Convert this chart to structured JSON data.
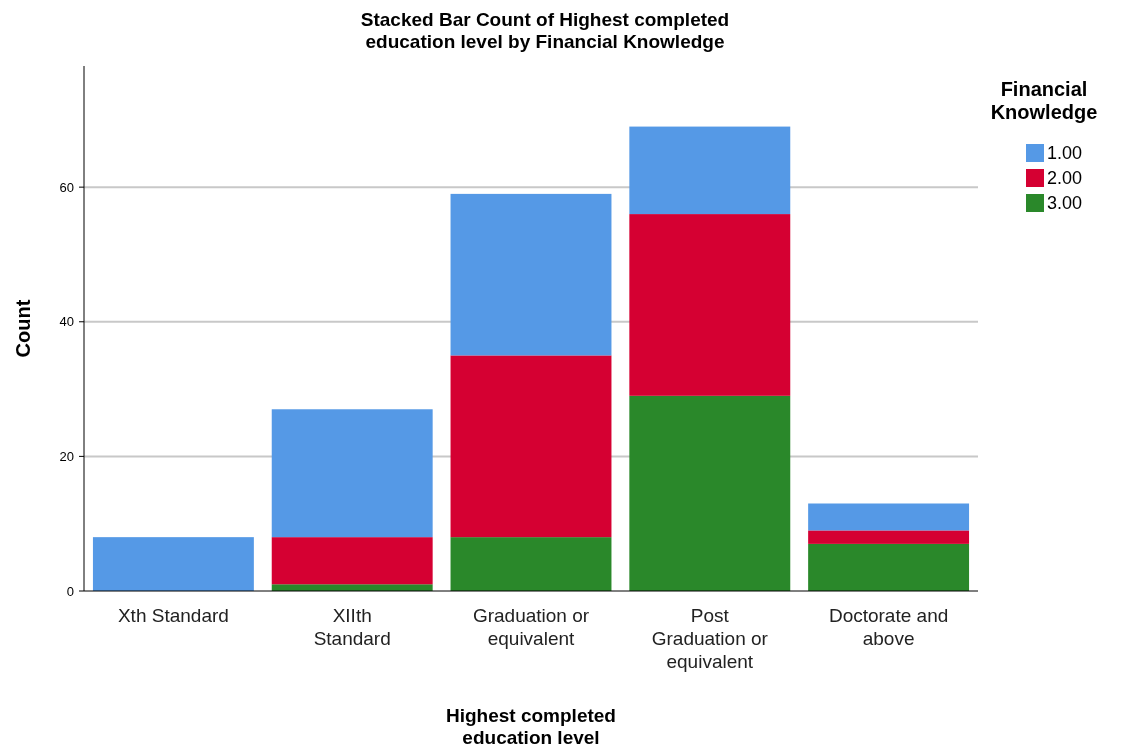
{
  "chart_data": {
    "type": "bar",
    "title": "Stacked Bar Count of Highest completed education level by Financial Knowledge",
    "xlabel": "Highest completed education level",
    "ylabel": "Count",
    "legend_title": "Financial Knowledge",
    "categories": [
      "Xth Standard",
      "XIIth Standard",
      "Graduation or equivalent",
      "Post Graduation or equivalent",
      "Doctorate and above"
    ],
    "series": [
      {
        "name": "3.00",
        "color": "#2a882a",
        "values": [
          0,
          1,
          8,
          29,
          7
        ]
      },
      {
        "name": "2.00",
        "color": "#d50032",
        "values": [
          0,
          7,
          27,
          27,
          2
        ]
      },
      {
        "name": "1.00",
        "color": "#5599e6",
        "values": [
          8,
          19,
          24,
          13,
          4
        ]
      }
    ],
    "stacked": true,
    "ylim": [
      0,
      78
    ],
    "yticks": [
      0,
      20,
      40,
      60
    ],
    "grid": "y",
    "legend": "top right"
  }
}
